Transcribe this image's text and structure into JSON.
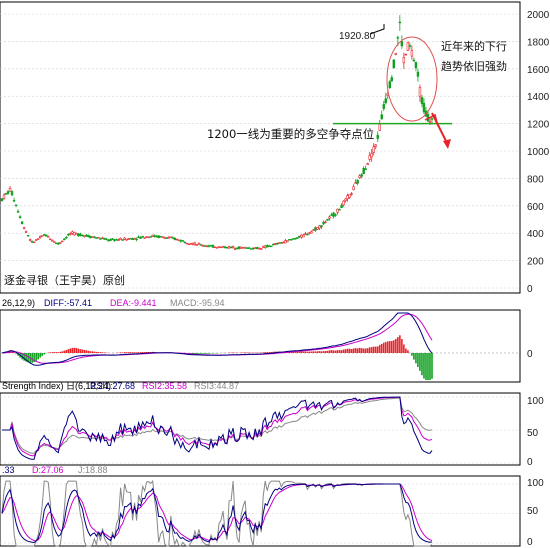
{
  "chart_data": [
    {
      "type": "candlestick",
      "panel": "price",
      "ylim": [
        0,
        2000
      ],
      "y_ticks": [
        "2000",
        "1800",
        "1600",
        "1400",
        "1200",
        "1000",
        "800",
        "600",
        "400",
        "200",
        "0"
      ],
      "annotations": {
        "peak_label": "1920.80",
        "support_label": "1200一线为重要的多空争夺点位",
        "trend_note_line1": "近年来的下行",
        "trend_note_line2": "趋势依旧强劲",
        "credit": "逐金寻银（王宇昊）原创"
      },
      "support_level": 1200,
      "peak_value": 1920.8,
      "key_prices": [
        {
          "t": 0,
          "v": 650
        },
        {
          "t": 0.02,
          "v": 720
        },
        {
          "t": 0.05,
          "v": 450
        },
        {
          "t": 0.07,
          "v": 330
        },
        {
          "t": 0.1,
          "v": 390
        },
        {
          "t": 0.13,
          "v": 320
        },
        {
          "t": 0.16,
          "v": 400
        },
        {
          "t": 0.2,
          "v": 380
        },
        {
          "t": 0.25,
          "v": 350
        },
        {
          "t": 0.3,
          "v": 360
        },
        {
          "t": 0.35,
          "v": 380
        },
        {
          "t": 0.4,
          "v": 360
        },
        {
          "t": 0.45,
          "v": 320
        },
        {
          "t": 0.5,
          "v": 300
        },
        {
          "t": 0.55,
          "v": 295
        },
        {
          "t": 0.6,
          "v": 290
        },
        {
          "t": 0.65,
          "v": 330
        },
        {
          "t": 0.7,
          "v": 380
        },
        {
          "t": 0.74,
          "v": 450
        },
        {
          "t": 0.78,
          "v": 560
        },
        {
          "t": 0.81,
          "v": 680
        },
        {
          "t": 0.84,
          "v": 850
        },
        {
          "t": 0.87,
          "v": 1050
        },
        {
          "t": 0.89,
          "v": 1350
        },
        {
          "t": 0.91,
          "v": 1600
        },
        {
          "t": 0.925,
          "v": 1920.8
        },
        {
          "t": 0.935,
          "v": 1650
        },
        {
          "t": 0.945,
          "v": 1780
        },
        {
          "t": 0.955,
          "v": 1700
        },
        {
          "t": 0.965,
          "v": 1580
        },
        {
          "t": 0.975,
          "v": 1380
        },
        {
          "t": 0.985,
          "v": 1280
        },
        {
          "t": 0.995,
          "v": 1230
        },
        {
          "t": 1.0,
          "v": 1220
        }
      ]
    },
    {
      "type": "macd",
      "panel": "macd",
      "header_prefix": "26,12,9)",
      "header_diff": "DIFF:-57.41",
      "header_dea": "DEA:-9.441",
      "header_macd": "MACD:-95.94",
      "y_ticks": [
        "0"
      ]
    },
    {
      "type": "rsi",
      "panel": "rsi",
      "header_prefix": "Strength Index) 日(6,12,24)",
      "header_rsi1": "RSI1:27.68",
      "header_rsi2": "RSI2:35.58",
      "header_rsi3": "RSI3:44.87",
      "ylim": [
        0,
        100
      ],
      "y_ticks": [
        "100",
        "50",
        "0"
      ]
    },
    {
      "type": "kdj",
      "panel": "kdj",
      "header_k": ".33",
      "header_d": "D:27.06",
      "header_j": "J:18.88",
      "ylim": [
        0,
        100
      ],
      "y_ticks": [
        "100",
        "50",
        "0"
      ]
    }
  ],
  "colors": {
    "up": "#e8232a",
    "down": "#10a020",
    "diff_line": "#000080",
    "dea_line": "#cc00cc",
    "rsi3_line": "#888888",
    "support_line": "#22aa22",
    "circle": "#e05050",
    "arrow": "#e8232a"
  }
}
